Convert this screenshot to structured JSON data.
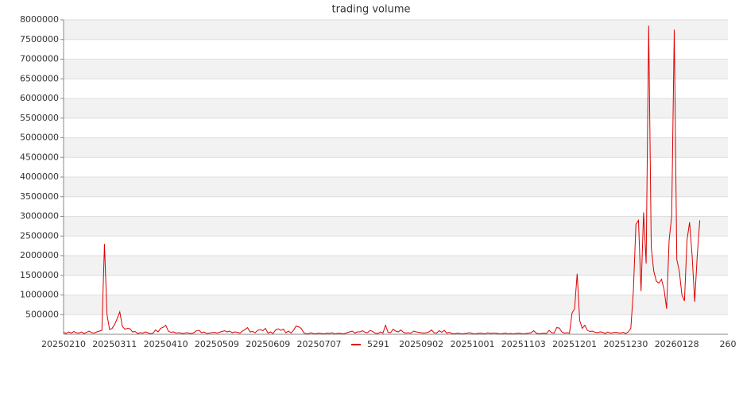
{
  "chart_data": {
    "type": "line",
    "title": "trading volume",
    "categories": [
      "20250210",
      null,
      null,
      null,
      null,
      null,
      null,
      null,
      null,
      null,
      null,
      null,
      null,
      null,
      null,
      null,
      null,
      null,
      null,
      null,
      "20250311",
      null,
      null,
      null,
      null,
      null,
      null,
      null,
      null,
      null,
      null,
      null,
      null,
      null,
      null,
      null,
      null,
      null,
      null,
      null,
      "20250410",
      null,
      null,
      null,
      null,
      null,
      null,
      null,
      null,
      null,
      null,
      null,
      null,
      null,
      null,
      null,
      null,
      null,
      null,
      null,
      "20250509",
      null,
      null,
      null,
      null,
      null,
      null,
      null,
      null,
      null,
      null,
      null,
      null,
      null,
      null,
      null,
      null,
      null,
      null,
      null,
      "20250609",
      null,
      null,
      null,
      null,
      null,
      null,
      null,
      null,
      null,
      null,
      null,
      null,
      null,
      null,
      null,
      null,
      null,
      null,
      null,
      "20250707",
      null,
      null,
      null,
      null,
      null,
      null,
      null,
      null,
      null,
      null,
      null,
      null,
      null,
      null,
      null,
      null,
      null,
      null,
      null,
      null,
      null,
      null,
      null,
      null,
      null,
      null,
      null,
      null,
      null,
      null,
      null,
      null,
      null,
      null,
      null,
      null,
      null,
      null,
      null,
      "20250902",
      null,
      null,
      null,
      null,
      null,
      null,
      null,
      null,
      null,
      null,
      null,
      null,
      null,
      null,
      null,
      null,
      null,
      null,
      null,
      "20251001",
      null,
      null,
      null,
      null,
      null,
      null,
      null,
      null,
      null,
      null,
      null,
      null,
      null,
      null,
      null,
      null,
      null,
      null,
      null,
      "20251103",
      null,
      null,
      null,
      null,
      null,
      null,
      null,
      null,
      null,
      null,
      null,
      null,
      null,
      null,
      null,
      null,
      null,
      null,
      null,
      "20251201",
      null,
      null,
      null,
      null,
      null,
      null,
      null,
      null,
      null,
      null,
      null,
      null,
      null,
      null,
      null,
      null,
      null,
      null,
      null,
      "20251230",
      null,
      null,
      null,
      null,
      null,
      null,
      null,
      null,
      null,
      null,
      null,
      null,
      null,
      null,
      null,
      null,
      null,
      null,
      null,
      "20260128",
      null,
      null,
      null,
      null,
      null,
      null,
      null,
      null,
      null,
      null,
      null,
      null,
      null,
      null,
      null,
      null,
      null,
      null,
      null,
      "260"
    ],
    "series": [
      {
        "name": "5291",
        "color": "#dd0000",
        "values": [
          50000,
          20000,
          60000,
          30000,
          70000,
          40000,
          30000,
          60000,
          20000,
          50000,
          80000,
          40000,
          30000,
          60000,
          80000,
          100000,
          2300000,
          500000,
          120000,
          150000,
          250000,
          400000,
          570000,
          200000,
          130000,
          150000,
          140000,
          60000,
          70000,
          20000,
          40000,
          30000,
          60000,
          40000,
          10000,
          30000,
          110000,
          60000,
          150000,
          180000,
          230000,
          80000,
          50000,
          60000,
          30000,
          40000,
          30000,
          20000,
          40000,
          30000,
          20000,
          40000,
          90000,
          100000,
          40000,
          60000,
          20000,
          30000,
          40000,
          50000,
          30000,
          50000,
          70000,
          90000,
          60000,
          80000,
          40000,
          60000,
          50000,
          30000,
          80000,
          120000,
          170000,
          60000,
          70000,
          40000,
          100000,
          120000,
          90000,
          150000,
          30000,
          60000,
          20000,
          110000,
          140000,
          100000,
          130000,
          40000,
          80000,
          30000,
          100000,
          210000,
          190000,
          150000,
          40000,
          10000,
          20000,
          40000,
          10000,
          20000,
          30000,
          20000,
          10000,
          30000,
          20000,
          40000,
          10000,
          20000,
          30000,
          10000,
          20000,
          40000,
          60000,
          80000,
          30000,
          60000,
          60000,
          90000,
          50000,
          40000,
          100000,
          70000,
          30000,
          20000,
          60000,
          30000,
          230000,
          50000,
          40000,
          130000,
          80000,
          60000,
          110000,
          50000,
          30000,
          40000,
          30000,
          80000,
          60000,
          50000,
          40000,
          30000,
          40000,
          60000,
          110000,
          40000,
          30000,
          90000,
          50000,
          100000,
          30000,
          50000,
          20000,
          10000,
          30000,
          20000,
          10000,
          20000,
          30000,
          40000,
          20000,
          10000,
          20000,
          30000,
          20000,
          10000,
          40000,
          20000,
          30000,
          30000,
          20000,
          10000,
          20000,
          30000,
          10000,
          20000,
          10000,
          20000,
          30000,
          20000,
          10000,
          20000,
          30000,
          40000,
          90000,
          30000,
          10000,
          20000,
          30000,
          20000,
          100000,
          40000,
          30000,
          170000,
          160000,
          60000,
          30000,
          40000,
          30000,
          540000,
          650000,
          1540000,
          350000,
          150000,
          230000,
          100000,
          70000,
          80000,
          50000,
          40000,
          60000,
          50000,
          20000,
          60000,
          30000,
          40000,
          50000,
          40000,
          30000,
          50000,
          20000,
          60000,
          150000,
          1100000,
          2800000,
          2900000,
          1100000,
          3100000,
          1800000,
          7850000,
          2200000,
          1600000,
          1350000,
          1300000,
          1400000,
          1150000,
          650000,
          2400000,
          3000000,
          7750000,
          1900000,
          1600000,
          1000000,
          850000,
          2400000,
          2850000,
          2000000,
          830000,
          2000000,
          2900000,
          null,
          null,
          null,
          null,
          null,
          null,
          null,
          null,
          null,
          null,
          null
        ]
      }
    ],
    "ylim": [
      0,
      8000000
    ],
    "yticks": [
      500000,
      1000000,
      1500000,
      2000000,
      2500000,
      3000000,
      3500000,
      4000000,
      4500000,
      5000000,
      5500000,
      6000000,
      6500000,
      7000000,
      7500000,
      8000000
    ],
    "grid": true,
    "legend": "bottom"
  }
}
